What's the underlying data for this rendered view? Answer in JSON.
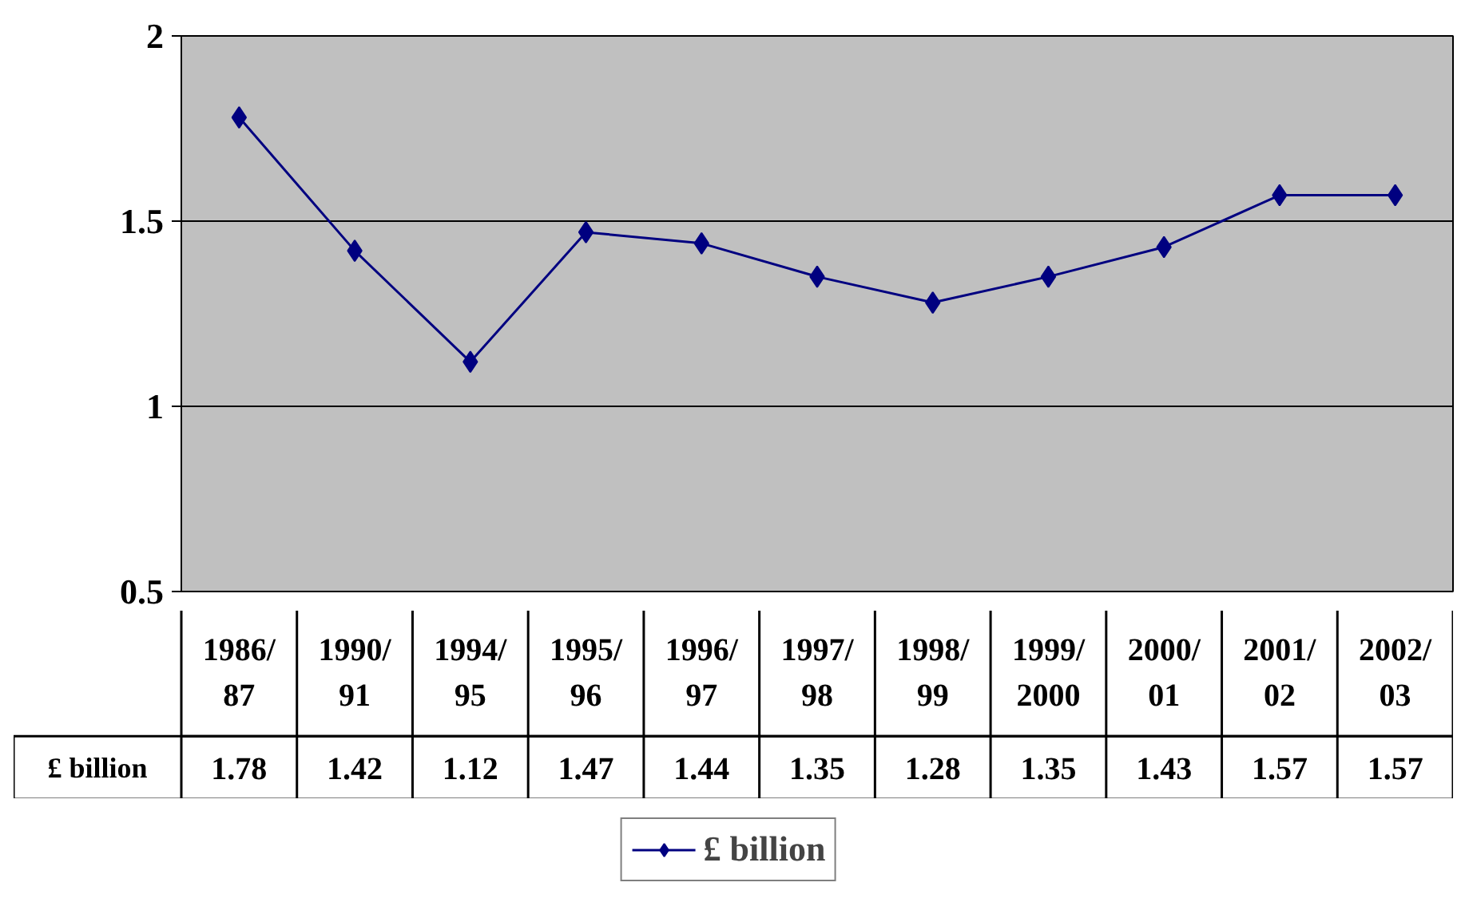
{
  "chart_data": {
    "type": "line",
    "categories": [
      "1986/87",
      "1990/91",
      "1994/95",
      "1995/96",
      "1996/97",
      "1997/98",
      "1998/99",
      "1999/2000",
      "2000/01",
      "2001/02",
      "2002/03"
    ],
    "series": [
      {
        "name": "£ billion",
        "color": "#000080",
        "values": [
          1.78,
          1.42,
          1.12,
          1.47,
          1.44,
          1.35,
          1.28,
          1.35,
          1.43,
          1.57,
          1.57
        ]
      }
    ],
    "ylim": [
      0.5,
      2
    ],
    "yticks": [
      0.5,
      1,
      1.5,
      2
    ],
    "grid": "y",
    "legend": "bottom",
    "marker": "diamond",
    "line_style": "solid",
    "data_labels": true
  }
}
